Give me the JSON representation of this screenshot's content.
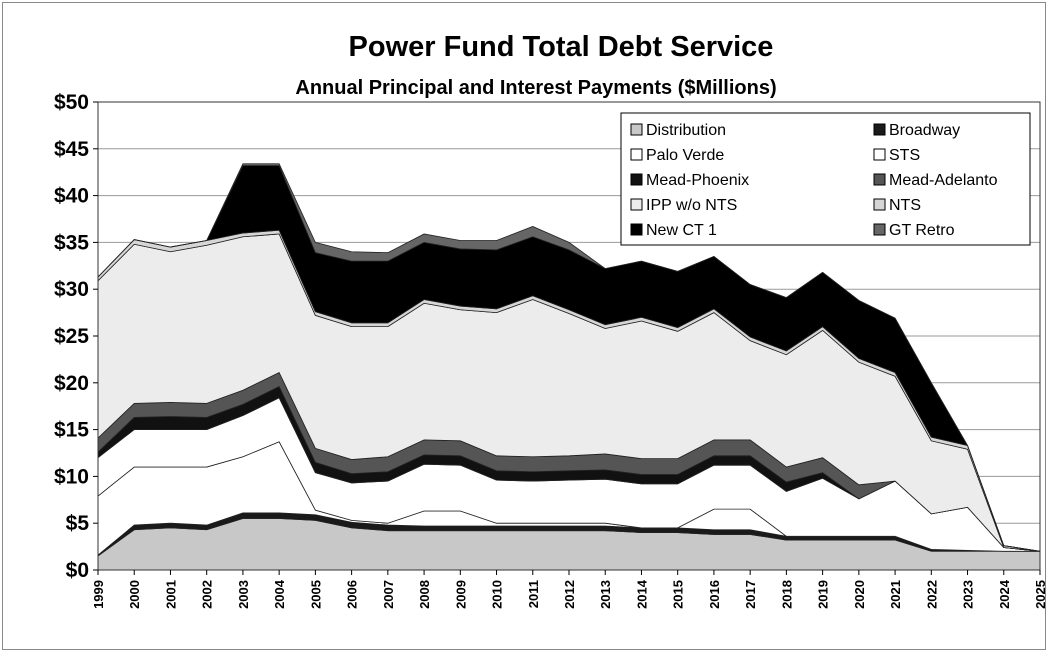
{
  "chart_data": {
    "type": "area",
    "stacked": true,
    "title": "Power Fund Total Debt Service",
    "subtitle": "Annual Principal and Interest Payments ($Millions)",
    "xlabel": "",
    "ylabel": "",
    "ylim": [
      0,
      50
    ],
    "yticks": [
      "$0",
      "$5",
      "$10",
      "$15",
      "$20",
      "$25",
      "$30",
      "$35",
      "$40",
      "$45",
      "$50"
    ],
    "x": [
      "1999",
      "2000",
      "2001",
      "2002",
      "2003",
      "2004",
      "2005",
      "2006",
      "2007",
      "2008",
      "2009",
      "2010",
      "2011",
      "2012",
      "2013",
      "2014",
      "2015",
      "2016",
      "2017",
      "2018",
      "2019",
      "2020",
      "2021",
      "2022",
      "2023",
      "2024",
      "2025"
    ],
    "grid": true,
    "legend_position": "top-right",
    "series": [
      {
        "name": "Distribution",
        "color": "#c8c8c8",
        "values": [
          1.5,
          4.3,
          4.5,
          4.3,
          5.5,
          5.5,
          5.3,
          4.5,
          4.2,
          4.2,
          4.2,
          4.2,
          4.2,
          4.2,
          4.2,
          4.0,
          4.0,
          3.8,
          3.8,
          3.2,
          3.2,
          3.2,
          3.2,
          2.0,
          2.0,
          2.0,
          2.0
        ]
      },
      {
        "name": "Broadway",
        "color": "#1a1a1a",
        "values": [
          0.1,
          0.5,
          0.5,
          0.5,
          0.6,
          0.6,
          0.6,
          0.6,
          0.6,
          0.5,
          0.5,
          0.5,
          0.5,
          0.5,
          0.5,
          0.5,
          0.5,
          0.5,
          0.5,
          0.4,
          0.4,
          0.4,
          0.4,
          0.2,
          0.1,
          0.0,
          0.0
        ]
      },
      {
        "name": "Palo Verde",
        "color": "#ffffff",
        "values": [
          6.3,
          6.2,
          6.0,
          6.2,
          6.0,
          7.6,
          0.5,
          0.2,
          0.2,
          1.6,
          1.6,
          0.3,
          0.3,
          0.3,
          0.3,
          0.0,
          0.0,
          2.2,
          2.2,
          0.0,
          0.0,
          0.0,
          0.0,
          0.0,
          0.0,
          0.0,
          0.0
        ]
      },
      {
        "name": "STS",
        "color": "#ffffff",
        "values": [
          4.1,
          4.0,
          4.0,
          4.0,
          4.4,
          4.7,
          4.0,
          4.0,
          4.5,
          5.0,
          4.9,
          4.6,
          4.5,
          4.6,
          4.7,
          4.7,
          4.7,
          4.7,
          4.7,
          4.8,
          6.2,
          4.0,
          5.9,
          3.8,
          4.6,
          0.4,
          0.0
        ]
      },
      {
        "name": "Mead-Phoenix",
        "color": "#111111",
        "values": [
          0.6,
          1.3,
          1.4,
          1.3,
          1.2,
          1.2,
          1.1,
          1.0,
          1.0,
          1.0,
          1.0,
          1.0,
          1.0,
          1.0,
          1.0,
          1.0,
          1.0,
          1.0,
          1.0,
          1.0,
          0.6,
          0.0,
          0.0,
          0.0,
          0.0,
          0.0,
          0.0
        ]
      },
      {
        "name": "Mead-Adelanto",
        "color": "#555555",
        "values": [
          1.5,
          1.5,
          1.5,
          1.5,
          1.5,
          1.5,
          1.5,
          1.5,
          1.6,
          1.6,
          1.6,
          1.6,
          1.6,
          1.6,
          1.7,
          1.7,
          1.7,
          1.7,
          1.7,
          1.6,
          1.6,
          1.5,
          0.0,
          0.0,
          0.0,
          0.0,
          0.0
        ]
      },
      {
        "name": "IPP w/o NTS",
        "color": "#ececec",
        "values": [
          16.8,
          17.0,
          16.1,
          16.9,
          16.4,
          14.8,
          14.2,
          14.2,
          13.9,
          14.6,
          14.0,
          15.3,
          16.8,
          15.2,
          13.4,
          14.7,
          13.6,
          13.6,
          10.6,
          12.0,
          13.6,
          13.1,
          11.2,
          7.8,
          6.2,
          0.0,
          0.0
        ]
      },
      {
        "name": "NTS",
        "color": "#d6d6d6",
        "values": [
          0.4,
          0.5,
          0.5,
          0.5,
          0.4,
          0.4,
          0.4,
          0.4,
          0.4,
          0.4,
          0.4,
          0.4,
          0.4,
          0.4,
          0.4,
          0.4,
          0.4,
          0.4,
          0.4,
          0.4,
          0.4,
          0.4,
          0.4,
          0.4,
          0.4,
          0.2,
          0.0
        ]
      },
      {
        "name": "New CT 1",
        "color": "#000000",
        "values": [
          0.0,
          0.0,
          0.0,
          0.0,
          7.2,
          6.9,
          6.3,
          6.6,
          6.6,
          6.1,
          6.1,
          6.3,
          6.3,
          6.4,
          6.0,
          6.0,
          6.0,
          5.6,
          5.6,
          5.7,
          5.8,
          6.2,
          5.8,
          5.8,
          0.0,
          0.0,
          0.0
        ]
      },
      {
        "name": "GT Retro",
        "color": "#666666",
        "values": [
          0.0,
          0.0,
          0.0,
          0.0,
          0.2,
          0.2,
          1.1,
          1.0,
          0.9,
          0.9,
          0.9,
          1.0,
          1.1,
          0.8,
          0.0,
          0.0,
          0.0,
          0.0,
          0.0,
          0.0,
          0.0,
          0.0,
          0.0,
          0.0,
          0.0,
          0.0,
          0.0
        ]
      }
    ]
  }
}
